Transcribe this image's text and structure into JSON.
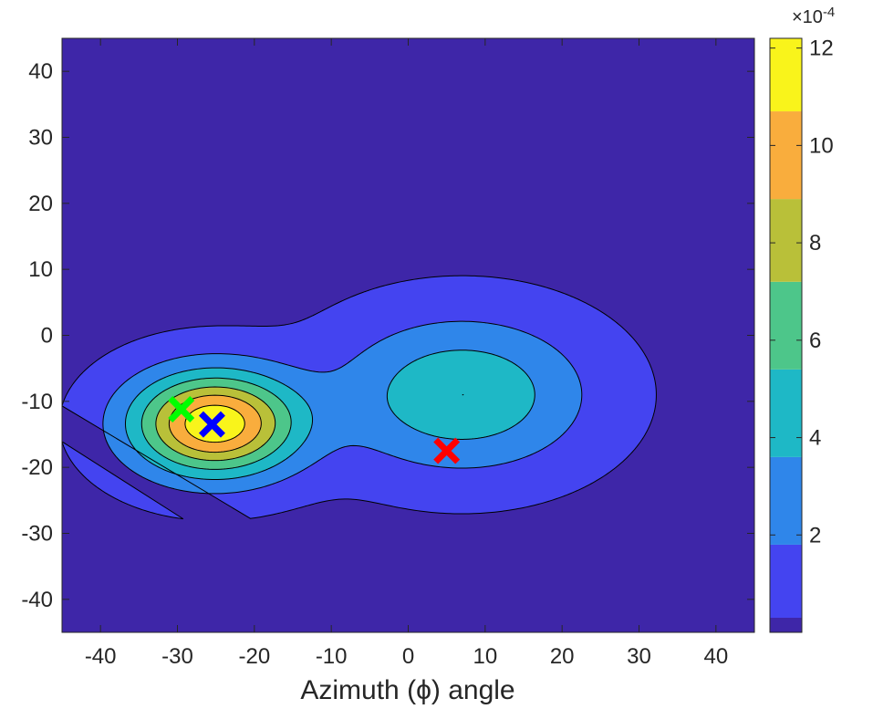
{
  "chart_data": {
    "type": "contourf",
    "title": "",
    "xlabel": "Azimuth (ϕ) angle",
    "ylabel": "",
    "xlim": [
      -45,
      45
    ],
    "ylim": [
      -45,
      45
    ],
    "x_ticks": [
      "-40",
      "-30",
      "-20",
      "-10",
      "0",
      "10",
      "20",
      "30",
      "40"
    ],
    "y_ticks": [
      "40",
      "30",
      "20",
      "10",
      "0",
      "-10",
      "-20",
      "-30",
      "-40"
    ],
    "colorbar": {
      "multiplier": "×10",
      "exponent": "-4",
      "ticks": [
        "12",
        "10",
        "8",
        "6",
        "4",
        "2"
      ],
      "min": 0,
      "max": 12.2,
      "colors": [
        "#3e26a8",
        "#4444f0",
        "#2f86ea",
        "#1eb8c6",
        "#4dc68a",
        "#b9c039",
        "#f9ad3d",
        "#f9f41b"
      ]
    },
    "contour_levels": [
      0.3,
      1.8,
      3.6,
      5.4,
      7.2,
      8.9,
      10.7
    ],
    "sources": [
      {
        "x": -25.2,
        "y": -13.4,
        "sx": 7.4,
        "sy": 5.4,
        "amp": 12.2
      },
      {
        "x": 7.0,
        "y": -9.0,
        "sx": 10.5,
        "sy": 7.5,
        "amp": 5.4
      }
    ],
    "markers": [
      {
        "label": "green-x",
        "x": -29.5,
        "y": -11.2,
        "color": "#00ff00"
      },
      {
        "label": "blue-x",
        "x": -25.5,
        "y": -13.5,
        "color": "#0000ff"
      },
      {
        "label": "red-x",
        "x": 5.0,
        "y": -17.5,
        "color": "#ff0000"
      }
    ]
  }
}
